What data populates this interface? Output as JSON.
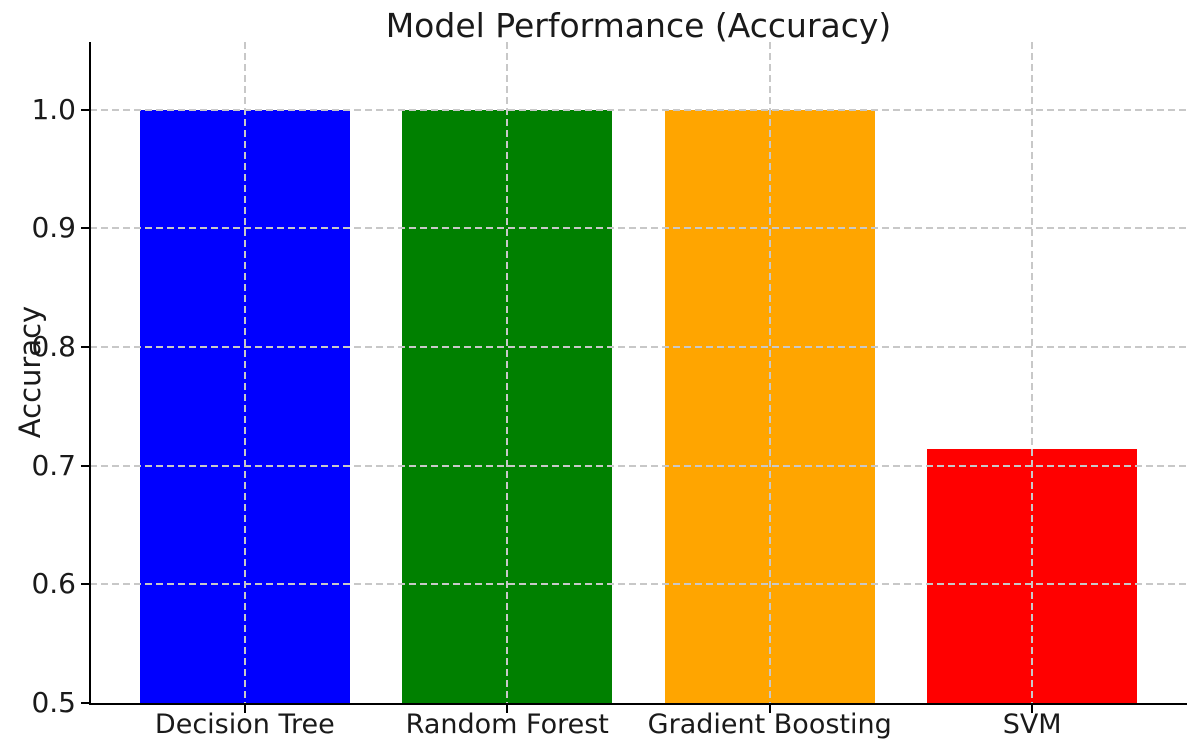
{
  "chart_data": {
    "type": "bar",
    "title": "Model Performance (Accuracy)",
    "xlabel": "",
    "ylabel": "Accuracy",
    "categories": [
      "Decision Tree",
      "Random Forest",
      "Gradient Boosting",
      "SVM"
    ],
    "values": [
      1.0,
      1.0,
      1.0,
      0.7143
    ],
    "colors": [
      "#0000ff",
      "#008000",
      "#ffa500",
      "#ff0000"
    ],
    "ylim": [
      0.5,
      1.057
    ],
    "xlim": [
      -0.59,
      3.59
    ],
    "yticks": [
      0.5,
      0.6,
      0.7,
      0.8,
      0.9,
      1.0
    ],
    "ytick_labels": [
      "0.5",
      "0.6",
      "0.7",
      "0.8",
      "0.9",
      "1.0"
    ],
    "bar_width": 0.8,
    "grid": {
      "visible": true,
      "style": "dashed",
      "color": "#c8c8c8",
      "over_bars": true
    },
    "legend": null,
    "axis_color": "#000000",
    "text_color": "#1a1a1a",
    "background": "#ffffff"
  }
}
